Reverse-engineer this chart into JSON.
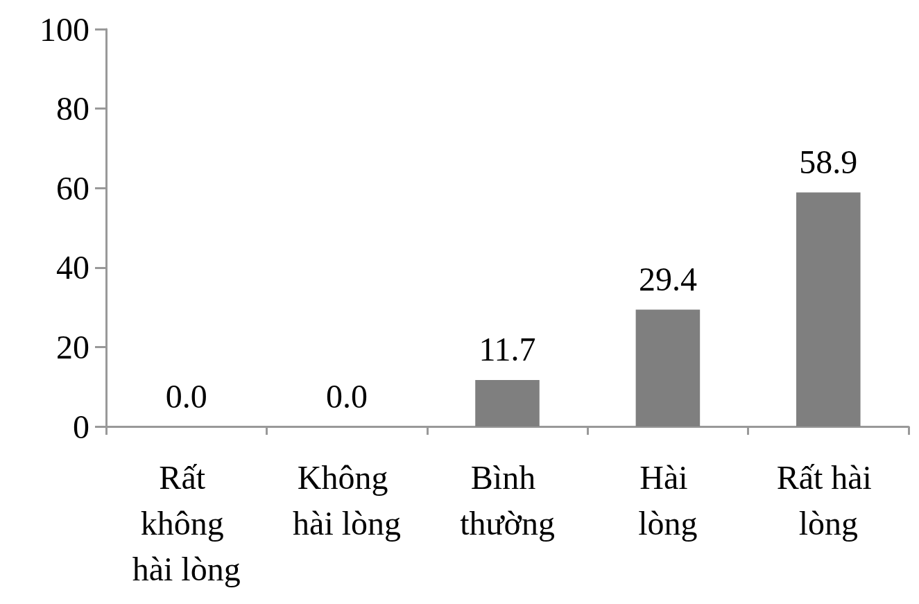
{
  "chart_data": {
    "type": "bar",
    "categories": [
      "Rất không hài lòng",
      "Không hài lòng",
      "Bình thường",
      "Hài lòng",
      "Rất hài lòng"
    ],
    "values": [
      0,
      0,
      11.7,
      29.4,
      58.9
    ],
    "value_labels": [
      "0.0",
      "0.0",
      "11.7",
      "29.4",
      "58.9"
    ],
    "color": "#7f7f7f",
    "ylim": [
      0,
      100
    ],
    "yticks": [
      0,
      20,
      40,
      60,
      80,
      100
    ],
    "grid": false
  }
}
